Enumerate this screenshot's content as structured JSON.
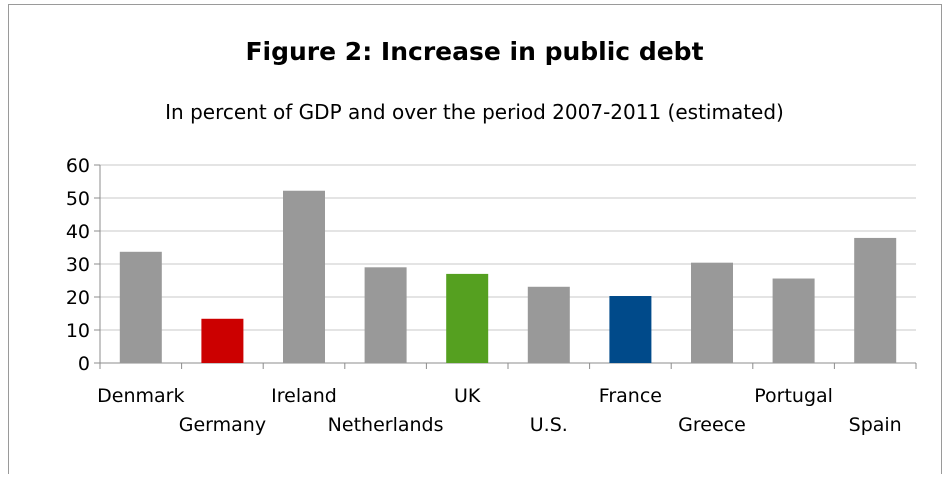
{
  "chart_data": {
    "type": "bar",
    "title": "Figure 2: Increase in public debt",
    "subtitle": "In percent of GDP and over the period 2007-2011 (estimated)",
    "categories": [
      "Denmark",
      "Germany",
      "Ireland",
      "Netherlands",
      "UK",
      "U.S.",
      "France",
      "Greece",
      "Portugal",
      "Spain"
    ],
    "values": [
      33.7,
      13.4,
      52.2,
      29.0,
      27.0,
      23.1,
      20.3,
      30.4,
      25.6,
      37.9
    ],
    "bar_colors": [
      "#999999",
      "#cc0000",
      "#999999",
      "#999999",
      "#55a020",
      "#999999",
      "#004a8a",
      "#999999",
      "#999999",
      "#999999"
    ],
    "ylim": [
      0,
      60
    ],
    "yticks": [
      0,
      10,
      20,
      30,
      40,
      50,
      60
    ],
    "grid": true,
    "xlabel": "",
    "ylabel": ""
  }
}
